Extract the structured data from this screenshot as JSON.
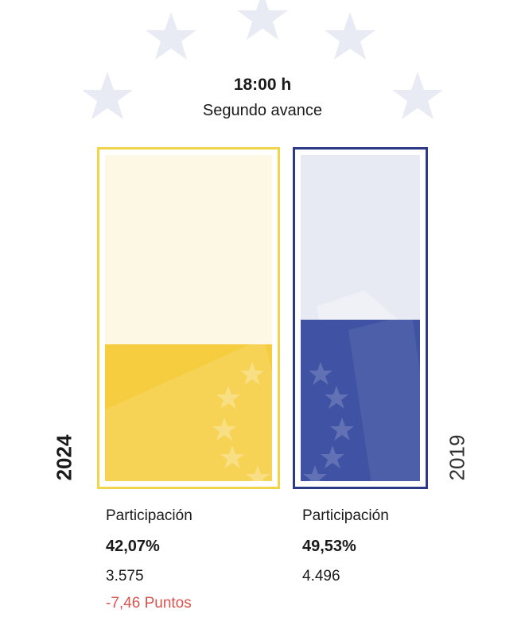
{
  "header": {
    "time": "18:00 h",
    "phase": "Segundo avance"
  },
  "chart_data": {
    "type": "bar",
    "title": "",
    "categories": [
      "2024",
      "2019"
    ],
    "values": [
      42.07,
      49.53
    ],
    "ylim": [
      0,
      100
    ],
    "colors": {
      "2024_fill": "#f5cd3e",
      "2024_empty": "#fdf8e4",
      "2024_border": "#f0d44a",
      "2019_fill": "#3f52a3",
      "2019_empty": "#e8eaf3",
      "2019_border": "#2a3a86"
    }
  },
  "years": {
    "y2024": "2024",
    "y2019": "2019"
  },
  "stats": {
    "s2024": {
      "label": "Participación",
      "pct": "42,07%",
      "count": "3.575",
      "diff": "-7,46 Puntos"
    },
    "s2019": {
      "label": "Participación",
      "pct": "49,53%",
      "count": "4.496"
    }
  }
}
